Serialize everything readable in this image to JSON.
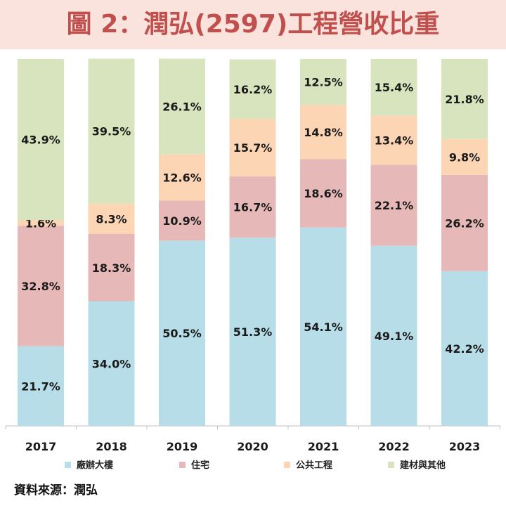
{
  "title": "圖 2：潤弘(2597)工程營收比重",
  "source": "資料來源：潤弘",
  "colors": {
    "title_bg": "#fbe3dd",
    "title_text": "#c0504d",
    "series": [
      "#b7dde8",
      "#e6b9b8",
      "#fcd5b5",
      "#d7e4bd"
    ]
  },
  "chart_data": {
    "type": "bar",
    "stacked": true,
    "percent_stacked": true,
    "title": "圖 2：潤弘(2597)工程營收比重",
    "xlabel": "",
    "ylabel": "",
    "ylim": [
      0,
      100
    ],
    "categories": [
      "2017",
      "2018",
      "2019",
      "2020",
      "2021",
      "2022",
      "2023"
    ],
    "series": [
      {
        "name": "廠辦大樓",
        "values": [
          21.7,
          34.0,
          50.5,
          51.3,
          54.1,
          49.1,
          42.2
        ]
      },
      {
        "name": "住宅",
        "values": [
          32.8,
          18.3,
          10.9,
          16.7,
          18.6,
          22.1,
          26.2
        ]
      },
      {
        "name": "公共工程",
        "values": [
          1.6,
          8.3,
          12.6,
          15.7,
          14.8,
          13.4,
          9.8
        ]
      },
      {
        "name": "建材與其他",
        "values": [
          43.9,
          39.5,
          26.1,
          16.2,
          12.5,
          15.4,
          21.8
        ]
      }
    ],
    "legend": "bottom"
  }
}
